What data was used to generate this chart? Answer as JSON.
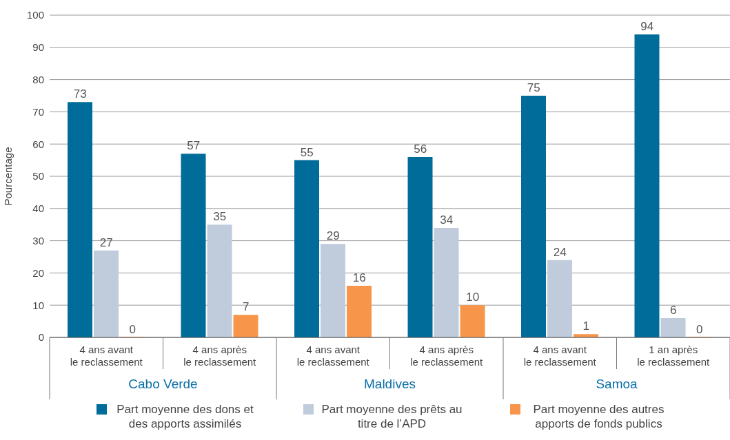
{
  "chart_data": {
    "type": "bar",
    "ylabel": "Pourcentage",
    "categories": [
      "4 ans avant\nle reclassement",
      "4 ans après\nle reclassement",
      "4 ans avant\nle reclassement",
      "4 ans après\nle reclassement",
      "4 ans avant\nle reclassement",
      "1 an après\nle reclassement"
    ],
    "annotations": [
      "Cabo Verde",
      "Maldives",
      "Samoa"
    ],
    "series": [
      {
        "name": "Part moyenne des dons et des apports assimilés",
        "color": "#006c9a",
        "values": [
          73,
          57,
          55,
          56,
          75,
          94
        ]
      },
      {
        "name": "Part moyenne des prêts au titre de l’APD",
        "color": "#c0cbdc",
        "values": [
          27,
          35,
          29,
          34,
          24,
          6
        ]
      },
      {
        "name": "Part moyenne des autres apports de fonds publics",
        "color": "#f7964a",
        "values": [
          0,
          7,
          16,
          10,
          1,
          0
        ]
      }
    ],
    "ylim": [
      0,
      100
    ],
    "yticks": [
      0,
      10,
      20,
      30,
      40,
      50,
      60,
      70,
      80,
      90,
      100
    ],
    "grid": "y",
    "legend": "bottom",
    "data_labels": true
  }
}
